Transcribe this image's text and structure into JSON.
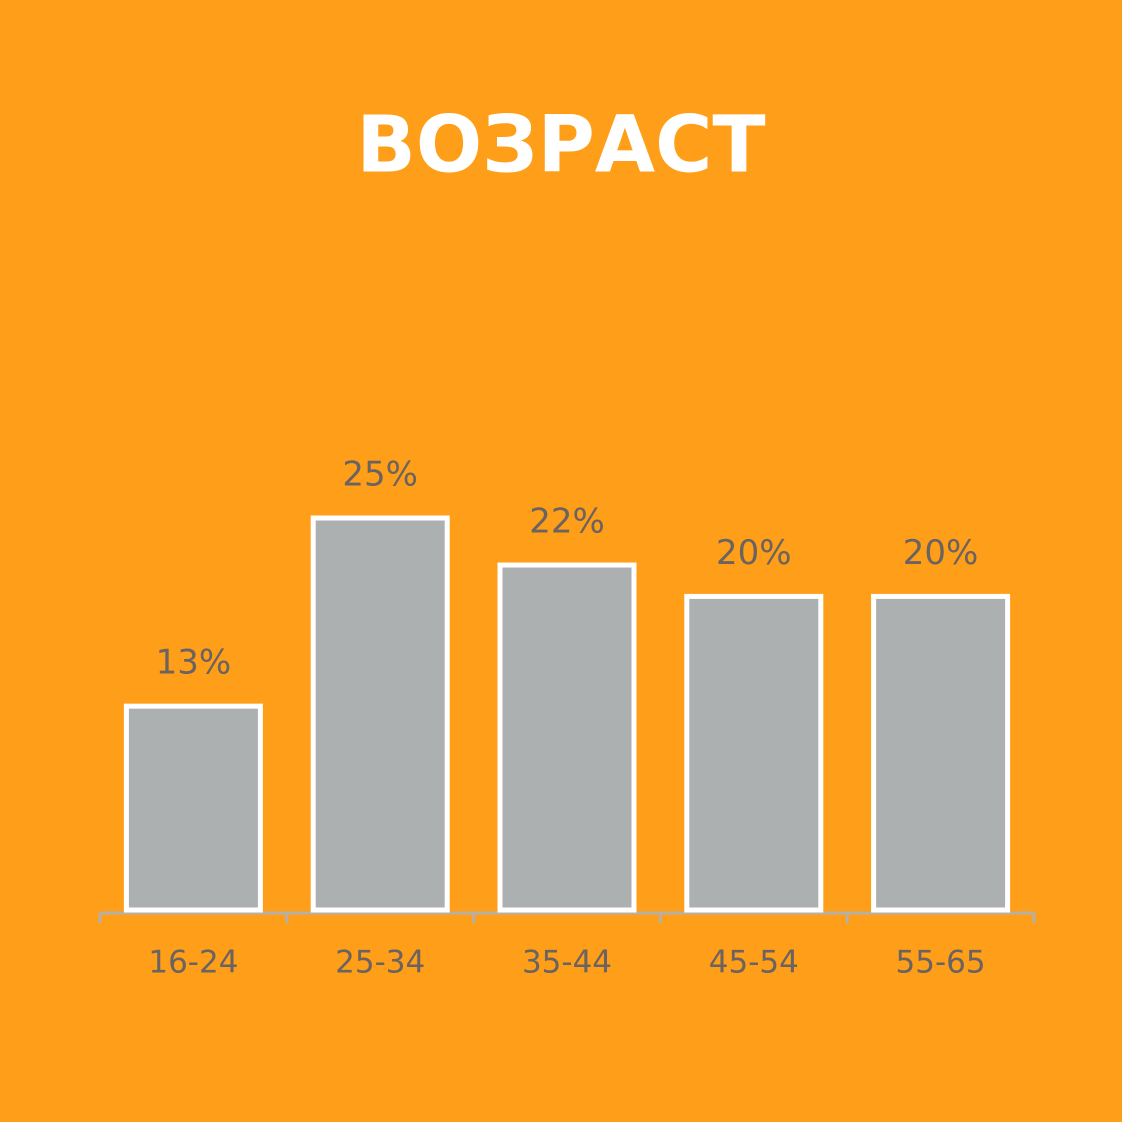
{
  "chart_data": {
    "type": "bar",
    "title": "ВОЗРАСТ",
    "categories": [
      "16-24",
      "25-34",
      "35-44",
      "45-54",
      "55-65"
    ],
    "values": [
      13,
      25,
      22,
      20,
      20
    ],
    "value_labels": [
      "13%",
      "25%",
      "22%",
      "20%",
      "20%"
    ],
    "color": "#adb0b1"
  }
}
